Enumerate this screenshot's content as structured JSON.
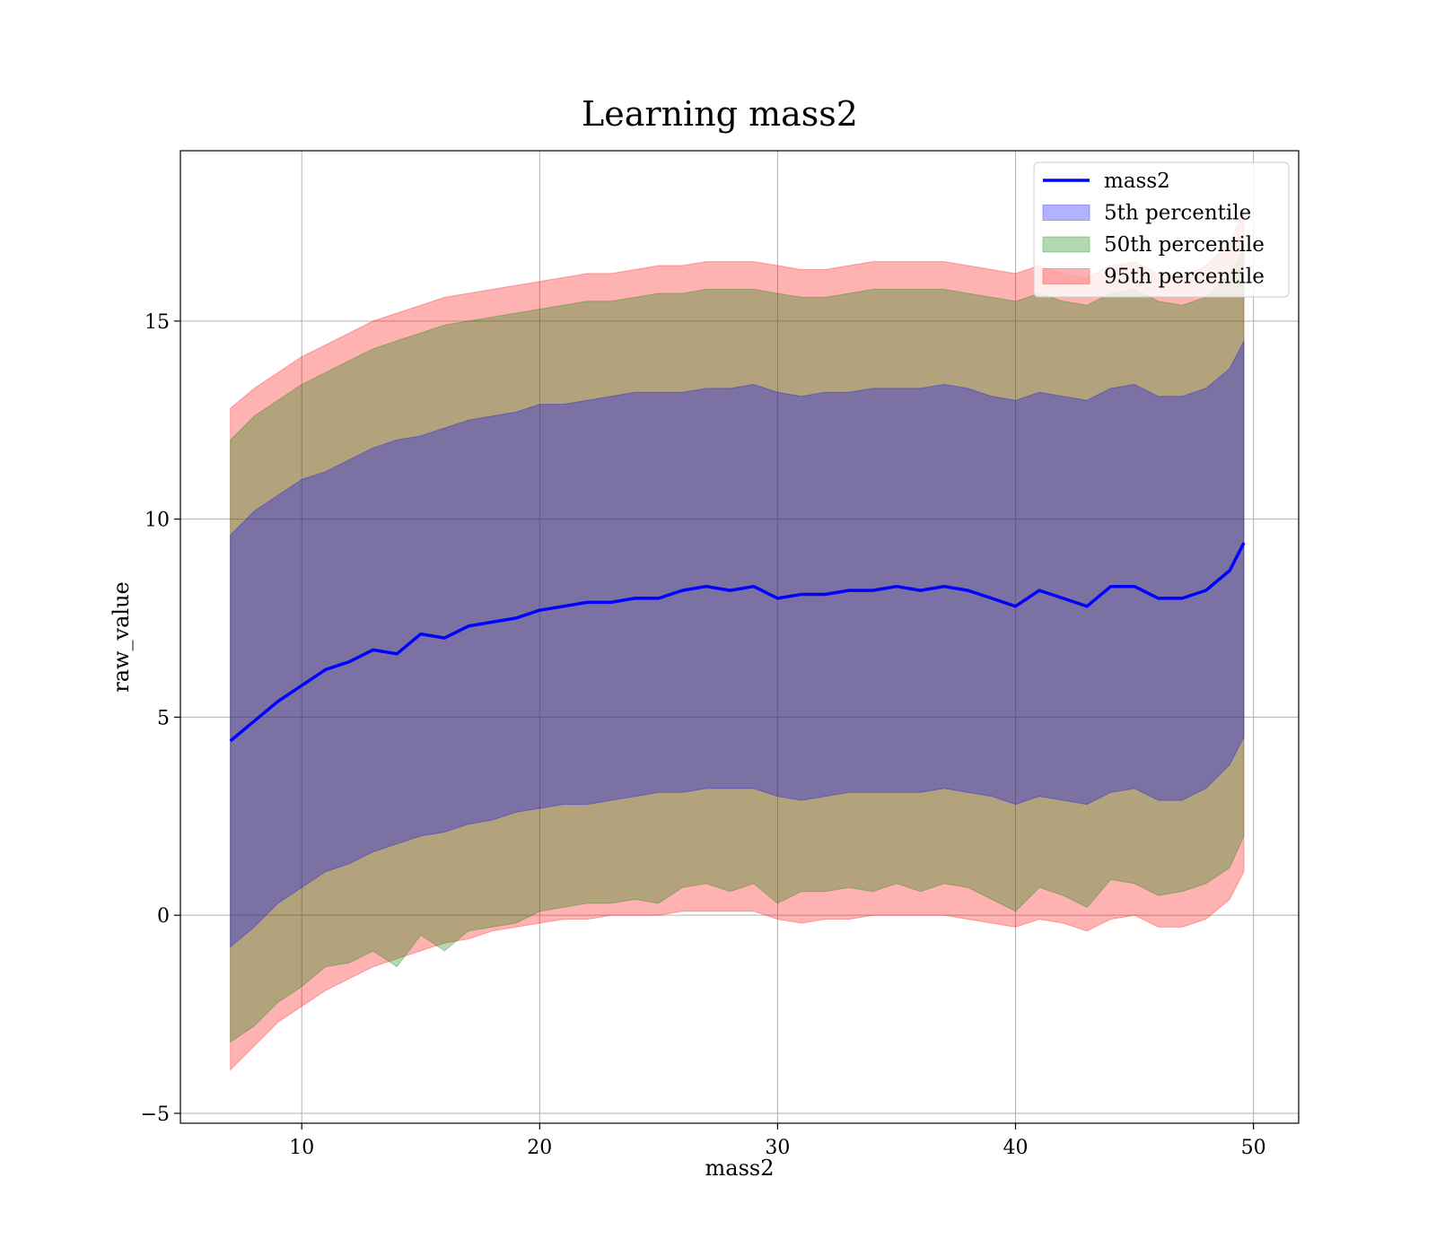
{
  "chart_data": {
    "type": "area",
    "title": "Learning mass2",
    "xlabel": "mass2",
    "ylabel": "raw_value",
    "xlim": [
      4.9,
      51.9
    ],
    "ylim": [
      -5.25,
      19.3
    ],
    "xticks": [
      10,
      20,
      30,
      40,
      50
    ],
    "yticks": [
      -5,
      0,
      5,
      10,
      15
    ],
    "xtick_labels": [
      "10",
      "20",
      "30",
      "40",
      "50"
    ],
    "ytick_labels": [
      "−5",
      "0",
      "5",
      "10",
      "15"
    ],
    "grid": true,
    "legend_position": "top-right",
    "colors": {
      "line": "#0000ff",
      "band5": "#0000ff",
      "band50": "#008000",
      "band95": "#ff0000"
    },
    "legend": [
      {
        "label": "mass2",
        "kind": "line",
        "color": "#0000ff"
      },
      {
        "label": "5th percentile",
        "kind": "patch",
        "color": "#0000ff"
      },
      {
        "label": "50th percentile",
        "kind": "patch",
        "color": "#008000"
      },
      {
        "label": "95th percentile",
        "kind": "patch",
        "color": "#ff0000"
      }
    ],
    "x": [
      7.0,
      8.0,
      9.0,
      10.0,
      11.0,
      12.0,
      13.0,
      14.0,
      15.0,
      16.0,
      17.0,
      18.0,
      19.0,
      20.0,
      21.0,
      22.0,
      23.0,
      24.0,
      25.0,
      26.0,
      27.0,
      28.0,
      29.0,
      30.0,
      31.0,
      32.0,
      33.0,
      34.0,
      35.0,
      36.0,
      37.0,
      38.0,
      39.0,
      40.0,
      41.0,
      42.0,
      43.0,
      44.0,
      45.0,
      46.0,
      47.0,
      48.0,
      49.0,
      49.6
    ],
    "series": [
      {
        "name": "mass2",
        "kind": "line",
        "values": [
          4.4,
          4.9,
          5.4,
          5.8,
          6.2,
          6.4,
          6.7,
          6.6,
          7.1,
          7.0,
          7.3,
          7.4,
          7.5,
          7.7,
          7.8,
          7.9,
          7.9,
          8.0,
          8.0,
          8.2,
          8.3,
          8.2,
          8.3,
          8.0,
          8.1,
          8.1,
          8.2,
          8.2,
          8.3,
          8.2,
          8.3,
          8.2,
          8.0,
          7.8,
          8.2,
          8.0,
          7.8,
          8.3,
          8.3,
          8.0,
          8.0,
          8.2,
          8.7,
          9.4
        ]
      },
      {
        "name": "5th percentile",
        "kind": "band",
        "upper": [
          9.6,
          10.2,
          10.6,
          11.0,
          11.2,
          11.5,
          11.8,
          12.0,
          12.1,
          12.3,
          12.5,
          12.6,
          12.7,
          12.9,
          12.9,
          13.0,
          13.1,
          13.2,
          13.2,
          13.2,
          13.3,
          13.3,
          13.4,
          13.2,
          13.1,
          13.2,
          13.2,
          13.3,
          13.3,
          13.3,
          13.4,
          13.3,
          13.1,
          13.0,
          13.2,
          13.1,
          13.0,
          13.3,
          13.4,
          13.1,
          13.1,
          13.3,
          13.8,
          14.5
        ],
        "lower": [
          -0.8,
          -0.3,
          0.3,
          0.7,
          1.1,
          1.3,
          1.6,
          1.8,
          2.0,
          2.1,
          2.3,
          2.4,
          2.6,
          2.7,
          2.8,
          2.8,
          2.9,
          3.0,
          3.1,
          3.1,
          3.2,
          3.2,
          3.2,
          3.0,
          2.9,
          3.0,
          3.1,
          3.1,
          3.1,
          3.1,
          3.2,
          3.1,
          3.0,
          2.8,
          3.0,
          2.9,
          2.8,
          3.1,
          3.2,
          2.9,
          2.9,
          3.2,
          3.8,
          4.5
        ]
      },
      {
        "name": "50th percentile",
        "kind": "band",
        "upper": [
          12.0,
          12.6,
          13.0,
          13.4,
          13.7,
          14.0,
          14.3,
          14.5,
          14.7,
          14.9,
          15.0,
          15.1,
          15.2,
          15.3,
          15.4,
          15.5,
          15.5,
          15.6,
          15.7,
          15.7,
          15.8,
          15.8,
          15.8,
          15.7,
          15.6,
          15.6,
          15.7,
          15.8,
          15.8,
          15.8,
          15.8,
          15.7,
          15.6,
          15.5,
          15.7,
          15.5,
          15.4,
          15.7,
          15.8,
          15.5,
          15.4,
          15.6,
          16.2,
          16.8
        ]
      },
      {
        "name": "95th percentile",
        "kind": "band",
        "upper": [
          12.8,
          13.3,
          13.7,
          14.1,
          14.4,
          14.7,
          15.0,
          15.2,
          15.4,
          15.6,
          15.7,
          15.8,
          15.9,
          16.0,
          16.1,
          16.2,
          16.2,
          16.3,
          16.4,
          16.4,
          16.5,
          16.5,
          16.5,
          16.4,
          16.3,
          16.3,
          16.4,
          16.5,
          16.5,
          16.5,
          16.5,
          16.4,
          16.3,
          16.2,
          16.4,
          16.2,
          16.1,
          16.4,
          16.5,
          16.2,
          16.1,
          16.4,
          17.0,
          17.8
        ],
        "lower": [
          -3.9,
          -3.3,
          -2.7,
          -2.3,
          -1.9,
          -1.6,
          -1.3,
          -1.1,
          -0.9,
          -0.7,
          -0.6,
          -0.4,
          -0.3,
          -0.2,
          -0.1,
          -0.1,
          0.0,
          0.0,
          0.0,
          0.1,
          0.1,
          0.1,
          0.1,
          -0.1,
          -0.2,
          -0.1,
          -0.1,
          0.0,
          0.0,
          0.0,
          0.0,
          -0.1,
          -0.2,
          -0.3,
          -0.1,
          -0.2,
          -0.4,
          -0.1,
          0.0,
          -0.3,
          -0.3,
          -0.1,
          0.4,
          1.1
        ]
      }
    ]
  }
}
